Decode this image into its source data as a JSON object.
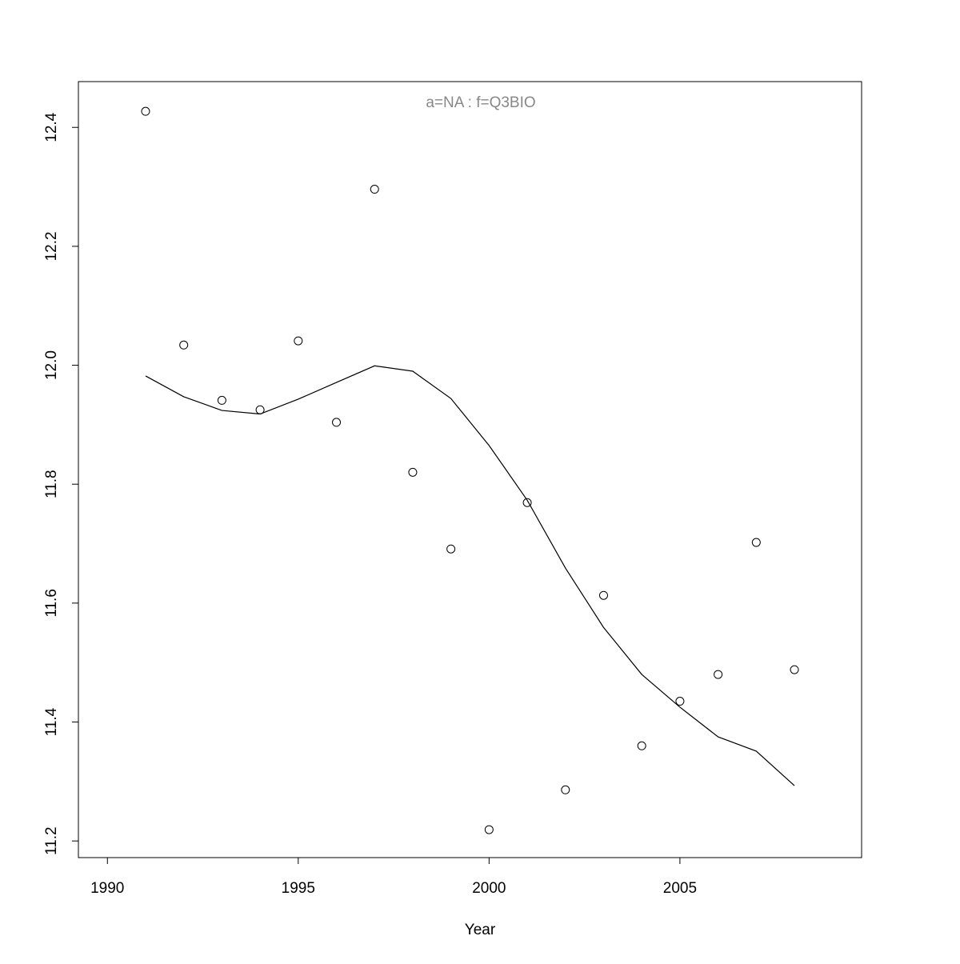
{
  "chart_data": {
    "type": "scatter",
    "title": "a=NA  :  f=Q3BIO",
    "x_label": "Year",
    "x": [
      1991,
      1992,
      1993,
      1994,
      1995,
      1996,
      1997,
      1998,
      1999,
      2000,
      2001,
      2002,
      2003,
      2004,
      2005,
      2006,
      2007,
      2008
    ],
    "series": [
      {
        "style": "points",
        "color": "#000000",
        "values": [
          12.427,
          12.034,
          11.941,
          11.925,
          12.041,
          11.904,
          12.296,
          11.82,
          11.691,
          11.219,
          11.769,
          11.286,
          11.613,
          11.36,
          11.435,
          11.48,
          11.702,
          11.488
        ]
      },
      {
        "style": "line",
        "color": "#000000",
        "values": [
          11.982,
          11.947,
          11.924,
          11.918,
          11.943,
          11.971,
          11.999,
          11.99,
          11.944,
          11.865,
          11.773,
          11.659,
          11.559,
          11.48,
          11.425,
          11.375,
          11.351,
          11.293
        ]
      }
    ],
    "xlim": [
      1989.24,
      2009.76
    ],
    "ylim": [
      11.172,
      12.477
    ],
    "xticks": [
      1990,
      1995,
      2000,
      2005
    ],
    "yticks": [
      11.2,
      11.4,
      11.6,
      11.8,
      {
        "value": 12,
        "label": "12.0"
      },
      12.2,
      12.4
    ]
  }
}
